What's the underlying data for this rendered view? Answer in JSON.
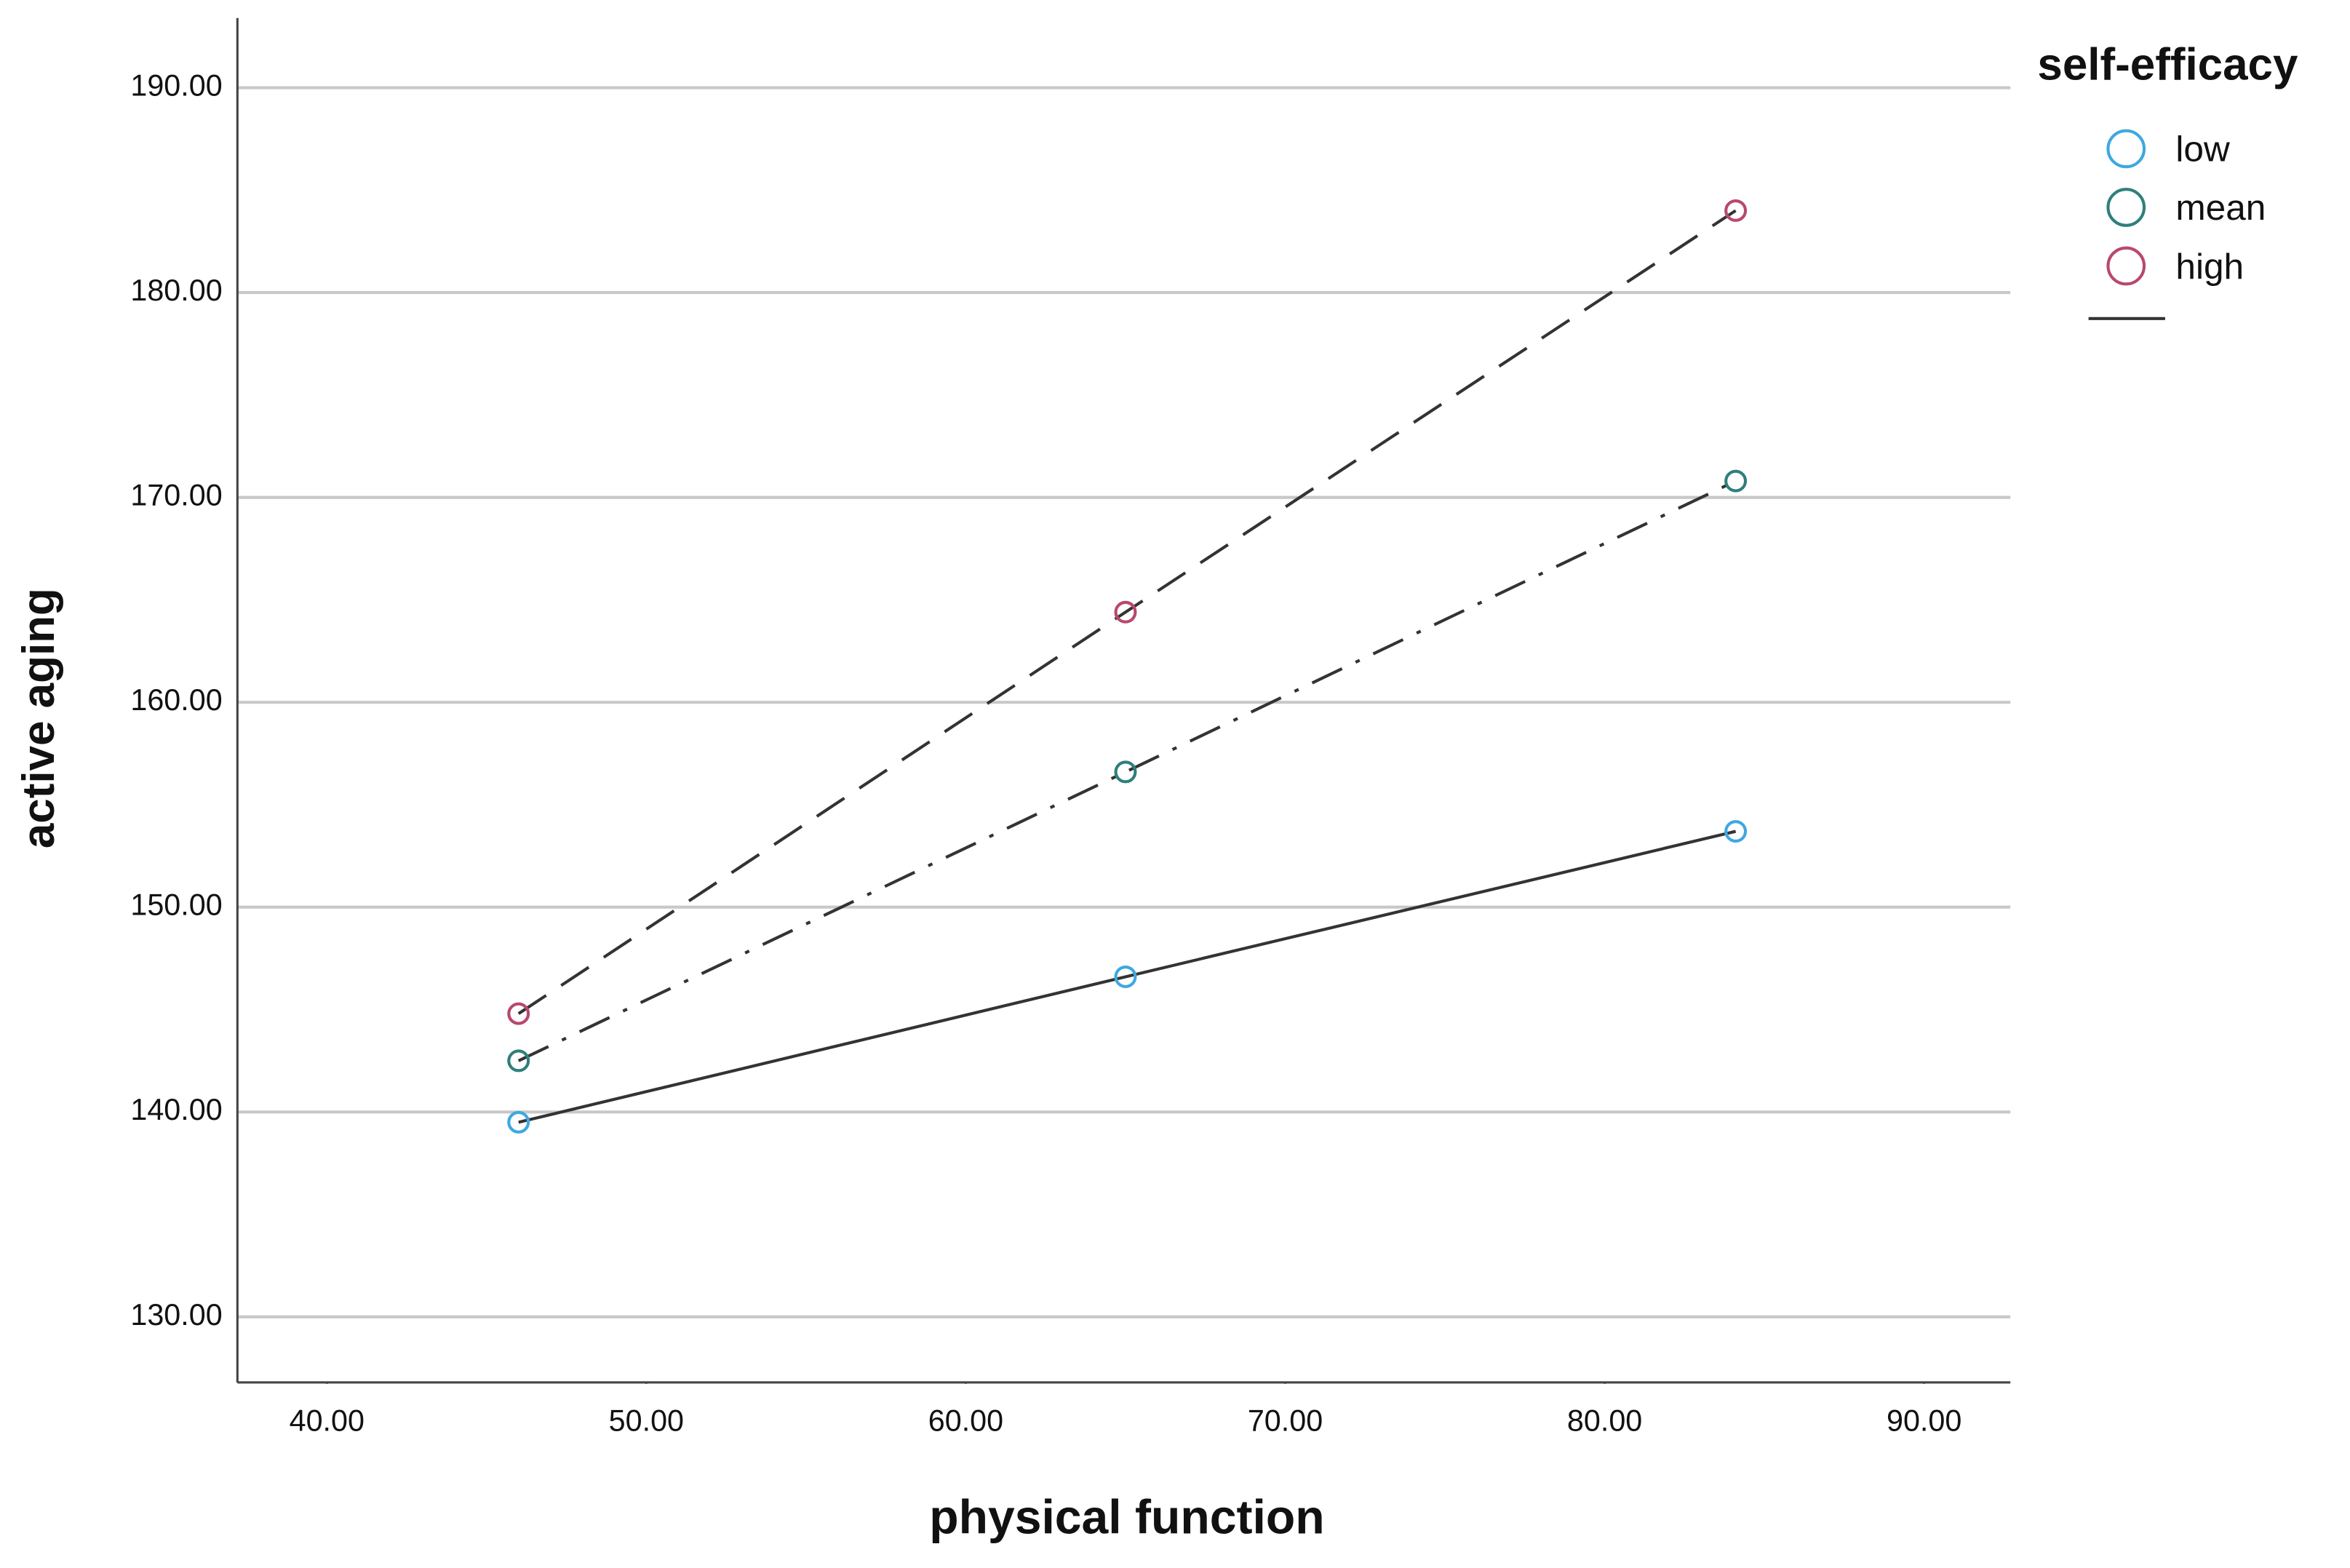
{
  "chart_data": {
    "type": "line",
    "x_label": "physical function",
    "y_label": "active aging",
    "legend_title": "self-efficacy",
    "legend_position": "right",
    "grid": true,
    "line_color": "#333333",
    "x": [
      46,
      65,
      84.1
    ],
    "series": [
      {
        "name": "low",
        "color": "#3ea8e0",
        "line_style": "solid",
        "values": [
          139.5,
          146.6,
          153.7
        ]
      },
      {
        "name": "mean",
        "color": "#2f7f7c",
        "line_style": "dashdot",
        "values": [
          142.5,
          156.6,
          170.8
        ]
      },
      {
        "name": "high",
        "color": "#b8486f",
        "line_style": "dashed",
        "values": [
          144.8,
          164.4,
          184.0
        ]
      }
    ],
    "xlim": [
      37.2,
      92.7
    ],
    "ylim": [
      126.8,
      193.4
    ],
    "xticks": [
      {
        "value": 40,
        "label": "40.00"
      },
      {
        "value": 50,
        "label": "50.00"
      },
      {
        "value": 60,
        "label": "60.00"
      },
      {
        "value": 70,
        "label": "70.00"
      },
      {
        "value": 80,
        "label": "80.00"
      },
      {
        "value": 90,
        "label": "90.00"
      }
    ],
    "yticks": [
      {
        "value": 130,
        "label": "130.00"
      },
      {
        "value": 140,
        "label": "140.00"
      },
      {
        "value": 150,
        "label": "150.00"
      },
      {
        "value": 160,
        "label": "160.00"
      },
      {
        "value": 170,
        "label": "170.00"
      },
      {
        "value": 180,
        "label": "180.00"
      },
      {
        "value": 190,
        "label": "190.00"
      }
    ]
  }
}
